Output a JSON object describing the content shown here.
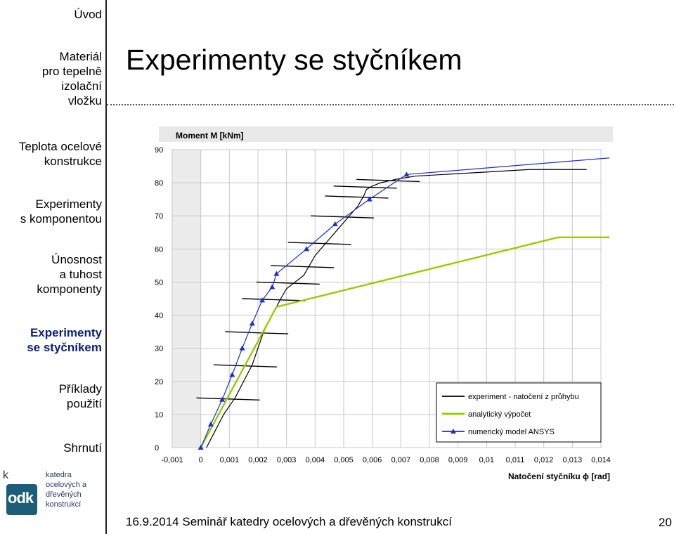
{
  "sidebar": {
    "items": [
      {
        "label_lines": [
          "Úvod"
        ],
        "active": false
      },
      {
        "label_lines": [
          "Materiál",
          "pro tepelně",
          "izolační",
          "vložku"
        ],
        "active": false
      },
      {
        "label_lines": [
          "Teplota ocelové",
          "konstrukce"
        ],
        "active": false
      },
      {
        "label_lines": [
          "Experimenty",
          "s komponentou"
        ],
        "active": false
      },
      {
        "label_lines": [
          "Únosnost",
          "a tuhost",
          "komponenty"
        ],
        "active": false
      },
      {
        "label_lines": [
          "Experimenty",
          "se styčníkem"
        ],
        "active": true
      },
      {
        "label_lines": [
          "Příklady",
          "použití"
        ],
        "active": false
      },
      {
        "label_lines": [
          "Shrnutí"
        ],
        "active": false
      }
    ]
  },
  "slide": {
    "title": "Experimenty se styčníkem",
    "footer": "16.9.2014 Seminář katedry ocelových a dřevěných konstrukcí",
    "page_number": "20"
  },
  "logo": {
    "k_letter": "k",
    "odk": "odk",
    "lines": [
      "katedra",
      "ocelových a",
      "dřevěných",
      "konstrukcí"
    ]
  },
  "colors": {
    "accent": "#0a1f7a",
    "analytical": "#99cc00",
    "numerical": "#1a2fd0",
    "experiment": "#000000"
  },
  "chart_data": {
    "type": "line",
    "ylabel": "Moment M [kNm]",
    "xlabel": "Natočení styčníku ϕ [rad]",
    "xlim": [
      -0.001,
      0.014
    ],
    "ylim": [
      0,
      90
    ],
    "x_ticks": [
      "-0,001",
      "0",
      "0,001",
      "0,002",
      "0,003",
      "0,004",
      "0,005",
      "0,006",
      "0,007",
      "0,008",
      "0,009",
      "0,01",
      "0,011",
      "0,012",
      "0,013",
      "0,014"
    ],
    "y_ticks": [
      "0",
      "10",
      "20",
      "30",
      "40",
      "50",
      "60",
      "70",
      "80",
      "90"
    ],
    "legend_position": "bottom-right",
    "series": [
      {
        "name": "experiment - natočení z průhybu",
        "style": "experiment",
        "x": [
          0.0002,
          0.0005,
          0.0008,
          0.0012,
          0.0015,
          0.0018,
          0.002,
          0.0022,
          0.0025,
          0.0028,
          0.003,
          0.0033,
          0.0036,
          0.0038,
          0.004,
          0.0044,
          0.0048,
          0.0052,
          0.0055,
          0.0057,
          0.0058,
          0.006,
          0.0063,
          0.0068,
          0.0075,
          0.0085,
          0.0095,
          0.0105,
          0.0115,
          0.0125,
          0.0135
        ],
        "y": [
          0,
          5,
          10,
          15,
          20,
          25,
          30,
          35,
          40,
          45,
          48,
          50,
          52,
          55,
          58,
          62,
          66,
          70,
          73,
          76,
          78,
          79,
          80,
          81,
          82,
          82.5,
          83,
          83.5,
          84,
          84,
          84
        ]
      },
      {
        "name": "analytický výpočet",
        "style": "analytical",
        "x": [
          0,
          0.00265,
          0.0125,
          0.0143
        ],
        "y": [
          0,
          42.5,
          63.5,
          63.5
        ]
      },
      {
        "name": "numerický model ANSYS",
        "style": "numerical",
        "x": [
          0,
          0.00035,
          0.00075,
          0.0011,
          0.00145,
          0.0018,
          0.00215,
          0.0025,
          0.00265,
          0.0037,
          0.0047,
          0.0059,
          0.0072,
          0.0143
        ],
        "y": [
          0,
          7,
          14.5,
          22,
          30,
          37.5,
          44.5,
          48.5,
          52.5,
          60,
          67.5,
          75,
          82.5,
          87.5
        ]
      }
    ]
  }
}
